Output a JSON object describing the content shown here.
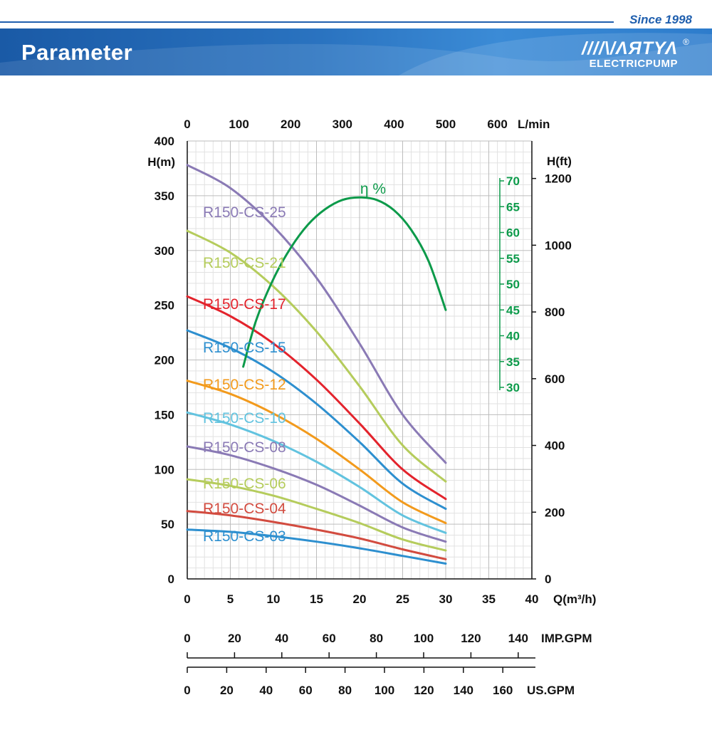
{
  "header": {
    "since": "Since 1998",
    "title": "Parameter",
    "logo_mark": "////\\/ΛЯTΥΛ",
    "logo_sub": "ELECTRICPUMP",
    "logo_reg": "®"
  },
  "colors": {
    "brand_blue": "#1f5fae",
    "grid": "#cfcfcf",
    "efficiency": "#0c9a4a"
  },
  "chart_data": {
    "type": "line",
    "title": "",
    "xlabel": "Q(m³/h)",
    "ylabel": "H(m)",
    "xlim": [
      0,
      40
    ],
    "ylim": [
      0,
      400
    ],
    "x_ticks": [
      0,
      5,
      10,
      15,
      20,
      25,
      30,
      35,
      40
    ],
    "y_ticks": [
      0,
      50,
      100,
      150,
      200,
      250,
      300,
      350,
      400
    ],
    "top_axis": {
      "label": "L/min",
      "ticks": [
        "0",
        "100",
        "200",
        "300",
        "400",
        "500",
        "600"
      ],
      "values": [
        0,
        100,
        200,
        300,
        400,
        500,
        600
      ]
    },
    "right_axis": {
      "label": "H(ft)",
      "ticks": [
        "0",
        "200",
        "400",
        "600",
        "800",
        "1000",
        "1200"
      ],
      "values": [
        0,
        200,
        400,
        600,
        800,
        1000,
        1200
      ]
    },
    "efficiency_axis": {
      "label": "η %",
      "ticks": [
        "30",
        "35",
        "40",
        "45",
        "50",
        "55",
        "60",
        "65",
        "70"
      ],
      "values": [
        30,
        35,
        40,
        45,
        50,
        55,
        60,
        65,
        70
      ]
    },
    "imp_gpm_axis": {
      "label": "IMP.GPM",
      "ticks": [
        "0",
        "20",
        "40",
        "60",
        "80",
        "100",
        "120",
        "140"
      ],
      "values": [
        0,
        20,
        40,
        60,
        80,
        100,
        120,
        140
      ]
    },
    "us_gpm_axis": {
      "label": "US.GPM",
      "ticks": [
        "0",
        "20",
        "40",
        "60",
        "80",
        "100",
        "120",
        "140",
        "160"
      ],
      "values": [
        0,
        20,
        40,
        60,
        80,
        100,
        120,
        140,
        160
      ]
    },
    "x": [
      0,
      5,
      10,
      15,
      20,
      25,
      30
    ],
    "series": [
      {
        "name": "R150-CS-25",
        "color": "#8a7ab5",
        "values": [
          378,
          357,
          322,
          275,
          215,
          150,
          106
        ]
      },
      {
        "name": "R150-CS-21",
        "color": "#b5cc5c",
        "values": [
          318,
          298,
          267,
          226,
          176,
          122,
          89
        ]
      },
      {
        "name": "R150-CS-17",
        "color": "#e3232c",
        "values": [
          258,
          240,
          215,
          182,
          142,
          100,
          73
        ]
      },
      {
        "name": "R150-CS-15",
        "color": "#2d8fcf",
        "values": [
          227,
          211,
          189,
          160,
          125,
          87,
          64
        ]
      },
      {
        "name": "R150-CS-12",
        "color": "#f29a1c",
        "values": [
          181,
          169,
          151,
          128,
          100,
          70,
          51
        ]
      },
      {
        "name": "R150-CS-10",
        "color": "#62c3df",
        "values": [
          152,
          141,
          126,
          107,
          84,
          58,
          42
        ]
      },
      {
        "name": "R150-CS-08",
        "color": "#8a7ab5",
        "values": [
          121,
          113,
          101,
          86,
          67,
          47,
          34
        ]
      },
      {
        "name": "R150-CS-06",
        "color": "#b5cc5c",
        "values": [
          91,
          85,
          76,
          64,
          51,
          36,
          26
        ]
      },
      {
        "name": "R150-CS-04",
        "color": "#d24b3f",
        "values": [
          62,
          58,
          52,
          45,
          37,
          27,
          18
        ]
      },
      {
        "name": "R150-CS-03",
        "color": "#2d8fcf",
        "values": [
          45,
          43,
          39,
          34,
          28,
          21,
          14
        ]
      }
    ],
    "efficiency": {
      "name": "η %",
      "x": [
        6.5,
        8,
        10,
        12,
        14,
        16,
        18,
        20,
        22,
        24,
        26,
        28,
        30
      ],
      "values": [
        34,
        43,
        51,
        57,
        61.5,
        64.5,
        66.3,
        66.8,
        66.3,
        64.3,
        60.5,
        54.5,
        45
      ]
    }
  }
}
